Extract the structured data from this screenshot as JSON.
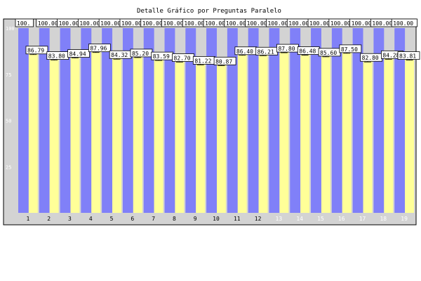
{
  "chart_data": {
    "type": "bar",
    "title": "Detalle Gráfico por Preguntas Paralelo",
    "xlabel": "",
    "ylabel": "",
    "ylim": [
      0,
      100
    ],
    "yticks": [
      25,
      50,
      75,
      100
    ],
    "grid": false,
    "legend": "none",
    "categories": [
      "1",
      "2",
      "3",
      "4",
      "5",
      "6",
      "7",
      "8",
      "9",
      "10",
      "11",
      "12",
      "13",
      "14",
      "15",
      "16",
      "17",
      "18",
      "19"
    ],
    "series": [
      {
        "color": "#8080f8",
        "values": [
          100,
          100,
          100,
          100,
          100,
          100,
          100,
          100,
          100,
          100,
          100,
          100,
          100,
          100,
          100,
          100,
          100,
          100,
          100
        ],
        "labels": [
          "100.",
          "100.00",
          "100.00",
          "100.00",
          "100.00",
          "100.00",
          "100.00",
          "100.00",
          "100.00",
          "100.00",
          "100.00",
          "100.00",
          "100.00",
          "100.00",
          "100.00",
          "100.00",
          "100.00",
          "100.00",
          "100.00"
        ]
      },
      {
        "color": "#ffff98",
        "values": [
          86.79,
          83.8,
          84.94,
          87.96,
          84.32,
          85.2,
          83.59,
          82.7,
          81.22,
          80.87,
          86.4,
          86.21,
          87.8,
          86.48,
          85.6,
          87.5,
          82.8,
          84.28,
          83.81
        ],
        "labels": [
          "86.79",
          "83.80",
          "84.94",
          "87.96",
          "84.32",
          "85.20",
          "83.59",
          "82.70",
          "81.22",
          "80.87",
          "86.40",
          "86.21",
          "87.80",
          "86.48",
          "85.60",
          "87.50",
          "82.80",
          "84.28",
          "83.81"
        ]
      }
    ],
    "colors": {
      "panel": "#d3d3d3",
      "frame": "#000000",
      "tick_text_dark": "#000000",
      "tick_text_light": "#ffffff",
      "label_box": "#ffffff"
    }
  }
}
